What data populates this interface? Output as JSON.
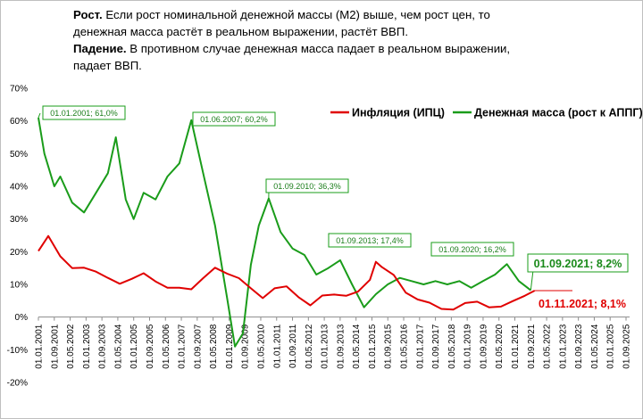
{
  "header": {
    "line1_bold": "Рост.",
    "line1": " Если рост номинальной  денежной массы (М2) выше, чем рост цен,  то",
    "line2": "денежная  масса растёт в реальном выражении,  растёт ВВП.",
    "line3_bold": "Падение.",
    "line3": " В противном случае денежная масса падает в реальном выражении,",
    "line4": "падает ВВП."
  },
  "chart_data": {
    "type": "line",
    "title": "",
    "ylim": [
      -20,
      70
    ],
    "y_ticks": [
      -20,
      -10,
      0,
      10,
      20,
      30,
      40,
      50,
      60,
      70
    ],
    "y_tick_labels": [
      "-20%",
      "-10%",
      "0%",
      "10%",
      "20%",
      "30%",
      "40%",
      "50%",
      "60%",
      "70%"
    ],
    "x_tick_labels": [
      "01.01.2001",
      "01.09.2001",
      "01.05.2002",
      "01.01.2003",
      "01.09.2003",
      "01.05.2004",
      "01.01.2005",
      "01.09.2005",
      "01.05.2006",
      "01.01.2007",
      "01.09.2007",
      "01.05.2008",
      "01.01.2009",
      "01.09.2009",
      "01.05.2010",
      "01.01.2011",
      "01.09.2011",
      "01.05.2012",
      "01.01.2013",
      "01.09.2013",
      "01.05.2014",
      "01.01.2015",
      "01.09.2015",
      "01.05.2016",
      "01.01.2017",
      "01.09.2017",
      "01.05.2018",
      "01.01.2019",
      "01.09.2019",
      "01.05.2020",
      "01.01.2021",
      "01.09.2021",
      "01.05.2022",
      "01.01.2023",
      "01.09.2023",
      "01.05.2024",
      "01.01.2025",
      "01.09.2025"
    ],
    "legend": {
      "placement": "top-right"
    },
    "series": [
      {
        "name": "Инфляция (ИПЦ)",
        "color": "#e00000",
        "x": [
          "01.01.2001",
          "01.06.2001",
          "01.12.2001",
          "01.06.2002",
          "01.12.2002",
          "01.06.2003",
          "01.12.2003",
          "01.06.2004",
          "01.12.2004",
          "01.06.2005",
          "01.12.2005",
          "01.06.2006",
          "01.12.2006",
          "01.06.2007",
          "01.12.2007",
          "01.06.2008",
          "01.12.2008",
          "01.06.2009",
          "01.12.2009",
          "01.06.2010",
          "01.12.2010",
          "01.06.2011",
          "01.12.2011",
          "01.06.2012",
          "01.12.2012",
          "01.06.2013",
          "01.12.2013",
          "01.06.2014",
          "01.12.2014",
          "01.03.2015",
          "01.06.2015",
          "01.12.2015",
          "01.06.2016",
          "01.12.2016",
          "01.06.2017",
          "01.12.2017",
          "01.06.2018",
          "01.12.2018",
          "01.06.2019",
          "01.12.2019",
          "01.06.2020",
          "01.12.2020",
          "01.06.2021",
          "01.11.2021"
        ],
        "values": [
          20.2,
          24.8,
          18.6,
          15.0,
          15.1,
          13.9,
          12.0,
          10.2,
          11.7,
          13.4,
          10.9,
          9.0,
          9.0,
          8.5,
          11.9,
          15.1,
          13.3,
          11.9,
          8.8,
          5.8,
          8.8,
          9.4,
          6.1,
          3.6,
          6.6,
          6.9,
          6.5,
          7.8,
          11.4,
          16.9,
          15.3,
          12.9,
          7.5,
          5.4,
          4.4,
          2.5,
          2.3,
          4.3,
          4.7,
          3.0,
          3.2,
          4.9,
          6.5,
          8.1
        ]
      },
      {
        "name": "Денежная масса (рост к АППГ)",
        "color": "#1a9c1a",
        "x": [
          "01.01.2001",
          "01.04.2001",
          "01.09.2001",
          "01.12.2001",
          "01.06.2002",
          "01.12.2002",
          "01.06.2003",
          "01.12.2003",
          "01.04.2004",
          "01.09.2004",
          "01.01.2005",
          "01.06.2005",
          "01.12.2005",
          "01.06.2006",
          "01.12.2006",
          "01.06.2007",
          "01.12.2007",
          "01.06.2008",
          "01.12.2008",
          "01.04.2009",
          "01.08.2009",
          "01.12.2009",
          "01.04.2010",
          "01.09.2010",
          "01.03.2011",
          "01.09.2011",
          "01.03.2012",
          "01.09.2012",
          "01.03.2013",
          "01.09.2013",
          "01.03.2014",
          "01.09.2014",
          "01.03.2015",
          "01.09.2015",
          "01.03.2016",
          "01.09.2016",
          "01.03.2017",
          "01.09.2017",
          "01.03.2018",
          "01.09.2018",
          "01.03.2019",
          "01.09.2019",
          "01.03.2020",
          "01.09.2020",
          "01.03.2021",
          "01.09.2021"
        ],
        "values": [
          61.0,
          50.0,
          40.0,
          43.0,
          35.0,
          32.0,
          38.0,
          44.0,
          55.0,
          36.0,
          30.0,
          38.0,
          36.0,
          43.0,
          47.0,
          60.2,
          44.0,
          28.0,
          6.0,
          -9.0,
          -5.0,
          16.0,
          28.0,
          36.3,
          26.0,
          21.0,
          19.0,
          13.0,
          15.0,
          17.4,
          10.0,
          3.0,
          7.0,
          10.0,
          12.0,
          11.0,
          10.0,
          11.0,
          10.0,
          11.0,
          9.0,
          11.0,
          13.0,
          16.2,
          11.0,
          8.2
        ]
      }
    ],
    "annotations": [
      {
        "text": "01.01.2001;  61,0%",
        "x": "01.01.2001",
        "y": 61.0,
        "series": 1
      },
      {
        "text": "01.06.2007;  60,2%",
        "x": "01.06.2007",
        "y": 60.2,
        "series": 1
      },
      {
        "text": "01.09.2010;  36,3%",
        "x": "01.09.2010",
        "y": 36.3,
        "series": 1
      },
      {
        "text": "01.09.2013;  17,4%",
        "x": "01.09.2013",
        "y": 17.4,
        "series": 1
      },
      {
        "text": "01.09.2020;  16,2%",
        "x": "01.09.2020",
        "y": 16.2,
        "series": 1
      },
      {
        "text": "01.09.2021; 8,2%",
        "x": "01.09.2021",
        "y": 8.2,
        "series": 1,
        "style": "end"
      },
      {
        "text": "01.11.2021; 8,1%",
        "x": "01.11.2021",
        "y": 8.1,
        "series": 0,
        "style": "end"
      }
    ]
  }
}
